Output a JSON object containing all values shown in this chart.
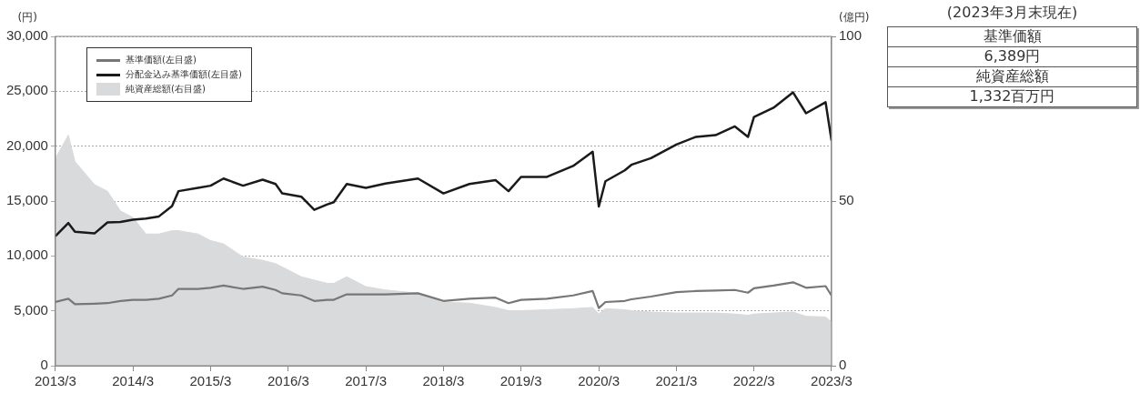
{
  "chart_data": {
    "type": "line",
    "ylabel": "(円)",
    "y2label": "(億円)",
    "x": [
      "2013-03",
      "2013-05",
      "2013-06",
      "2013-09",
      "2013-11",
      "2014-01",
      "2014-03",
      "2014-05",
      "2014-07",
      "2014-09",
      "2014-10",
      "2015-01",
      "2015-03",
      "2015-05",
      "2015-08",
      "2015-11",
      "2016-01",
      "2016-02",
      "2016-05",
      "2016-07",
      "2016-09",
      "2016-10",
      "2016-12",
      "2017-03",
      "2017-06",
      "2017-11",
      "2018-03",
      "2018-07",
      "2018-11",
      "2019-01",
      "2019-03",
      "2019-07",
      "2019-11",
      "2020-02",
      "2020-03",
      "2020-04",
      "2020-07",
      "2020-08",
      "2020-11",
      "2021-03",
      "2021-06",
      "2021-09",
      "2021-12",
      "2022-02",
      "2022-03",
      "2022-06",
      "2022-09",
      "2022-11",
      "2023-02",
      "2023-03"
    ],
    "series": [
      {
        "name": "純資産総額(右目盛)",
        "type": "area",
        "axis": "y2",
        "color": "#d9dadc",
        "values": [
          63,
          70,
          62,
          55,
          53,
          47,
          45,
          40,
          40,
          41,
          41,
          40,
          38,
          37,
          33,
          32,
          31,
          30,
          27,
          26,
          25,
          25,
          27,
          24,
          23,
          22,
          19.3,
          19,
          17.7,
          16.7,
          16.7,
          17,
          17.3,
          17.7,
          15.7,
          17.3,
          17,
          16.7,
          16.3,
          16,
          16,
          16,
          15.7,
          15.3,
          15.7,
          16,
          16.3,
          15,
          14.8,
          13.32
        ]
      },
      {
        "name": "基準価額(左目盛)",
        "type": "line",
        "color": "#777777",
        "values": [
          5800,
          6100,
          5600,
          5650,
          5700,
          5900,
          6000,
          6000,
          6100,
          6400,
          7000,
          7000,
          7100,
          7300,
          7000,
          7200,
          6900,
          6600,
          6400,
          5900,
          6000,
          6000,
          6500,
          6500,
          6500,
          6600,
          5900,
          6100,
          6200,
          5700,
          6000,
          6100,
          6400,
          6800,
          5250,
          5800,
          5900,
          6050,
          6300,
          6700,
          6800,
          6850,
          6900,
          6650,
          7050,
          7300,
          7600,
          7100,
          7250,
          6389
        ]
      },
      {
        "name": "分配金込み基準価額(左目盛)",
        "type": "line",
        "color": "#1a1a1a",
        "values": [
          11800,
          13000,
          12200,
          12050,
          13050,
          13100,
          13300,
          13400,
          13600,
          14550,
          15900,
          16200,
          16400,
          17050,
          16400,
          16950,
          16550,
          15700,
          15400,
          14200,
          14700,
          14900,
          16550,
          16200,
          16600,
          17050,
          15700,
          16550,
          16900,
          15900,
          17200,
          17200,
          18200,
          19500,
          14500,
          16800,
          17800,
          18300,
          18900,
          20150,
          20850,
          21000,
          21800,
          20850,
          22650,
          23500,
          24900,
          23000,
          24000,
          20500
        ]
      }
    ],
    "xlim": [
      "2013-03",
      "2023-03"
    ],
    "xticks": [
      {
        "value": "2013-03",
        "label": "2013/3"
      },
      {
        "value": "2014-03",
        "label": "2014/3"
      },
      {
        "value": "2015-03",
        "label": "2015/3"
      },
      {
        "value": "2016-03",
        "label": "2016/3"
      },
      {
        "value": "2017-03",
        "label": "2017/3"
      },
      {
        "value": "2018-03",
        "label": "2018/3"
      },
      {
        "value": "2019-03",
        "label": "2019/3"
      },
      {
        "value": "2020-03",
        "label": "2020/3"
      },
      {
        "value": "2021-03",
        "label": "2021/3"
      },
      {
        "value": "2022-03",
        "label": "2022/3"
      },
      {
        "value": "2023-03",
        "label": "2023/3"
      }
    ],
    "ylim": [
      0,
      30000
    ],
    "yticks": [
      0,
      {
        "value": 5000,
        "label": "5,000"
      },
      {
        "value": 10000,
        "label": "10,000"
      },
      {
        "value": 15000,
        "label": "15,000"
      },
      {
        "value": 20000,
        "label": "20,000"
      },
      {
        "value": 25000,
        "label": "25,000"
      },
      {
        "value": 30000,
        "label": "30,000"
      }
    ],
    "y2lim": [
      0,
      100
    ],
    "y2ticks": [
      0,
      50,
      100
    ],
    "grid": "y",
    "legend": "top left",
    "marker": "none",
    "line_style": "solid",
    "annotations": [
      "(2023年3月末現在)",
      "基準価額",
      "6,389円",
      "純資産総額",
      "1,332百万円"
    ]
  }
}
